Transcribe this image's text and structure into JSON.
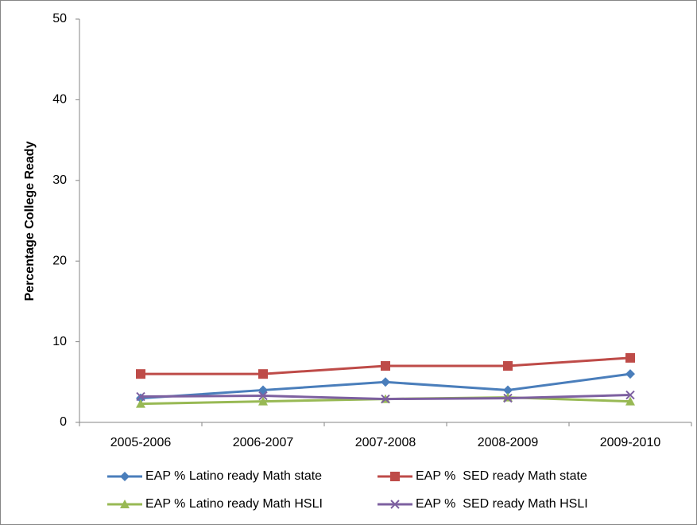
{
  "chart_data": {
    "type": "line",
    "y_label": "Percentage College Ready",
    "categories": [
      "2005-2006",
      "2006-2007",
      "2007-2008",
      "2008-2009",
      "2009-2010"
    ],
    "ylim": [
      0,
      50
    ],
    "yticks": [
      0,
      10,
      20,
      30,
      40,
      50
    ],
    "grid": false,
    "series": [
      {
        "name": "EAP % Latino ready Math state",
        "color": "#4a7ebb",
        "marker": "diamond",
        "values": [
          3.0,
          4.0,
          5.0,
          4.0,
          6.0
        ]
      },
      {
        "name": "EAP %  SED ready Math state",
        "color": "#be4b48",
        "marker": "square",
        "values": [
          6.0,
          6.0,
          7.0,
          7.0,
          8.0
        ]
      },
      {
        "name": "EAP % Latino ready Math HSLI",
        "color": "#98b954",
        "marker": "triangle",
        "values": [
          2.3,
          2.6,
          2.9,
          3.1,
          2.6
        ]
      },
      {
        "name": "EAP %  SED ready Math HSLI",
        "color": "#7d60a0",
        "marker": "x",
        "values": [
          3.2,
          3.3,
          2.9,
          3.0,
          3.4
        ]
      }
    ]
  }
}
